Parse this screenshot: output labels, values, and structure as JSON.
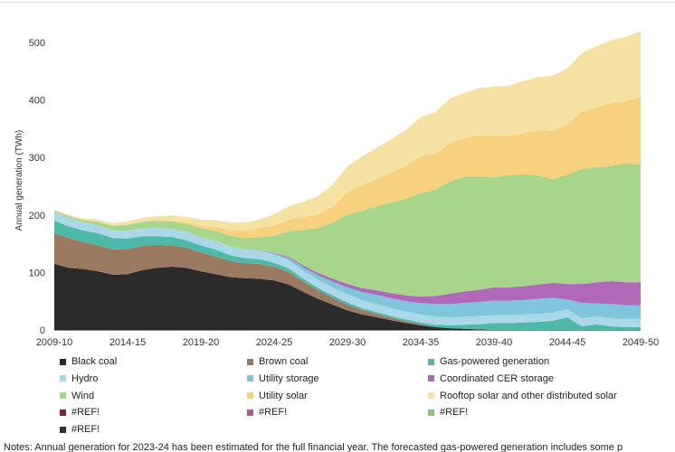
{
  "chart_data": {
    "type": "area",
    "stacked": true,
    "title": "",
    "xlabel": "",
    "ylabel": "Annual generation (TWh)",
    "ylim": [
      0,
      530
    ],
    "yticks": [
      0,
      100,
      200,
      300,
      400,
      500
    ],
    "x": [
      "2009-10",
      "2010-11",
      "2011-12",
      "2012-13",
      "2013-14",
      "2014-15",
      "2015-16",
      "2016-17",
      "2017-18",
      "2018-19",
      "2019-20",
      "2020-21",
      "2021-22",
      "2022-23",
      "2023-24",
      "2024-25",
      "2025-26",
      "2026-27",
      "2027-28",
      "2028-29",
      "2029-30",
      "2030-31",
      "2031-32",
      "2032-33",
      "2033-34",
      "2034-35",
      "2035-36",
      "2036-37",
      "2037-38",
      "2038-39",
      "2039-40",
      "2040-41",
      "2041-42",
      "2042-43",
      "2043-44",
      "2044-45",
      "2045-46",
      "2046-47",
      "2047-48",
      "2048-49",
      "2049-50"
    ],
    "xtick_labels": [
      "2009-10",
      "2014-15",
      "2019-20",
      "2024-25",
      "2029-30",
      "2034-35",
      "2039-40",
      "2044-45",
      "2049-50"
    ],
    "grid": false,
    "legend_position": "bottom",
    "series": [
      {
        "name": "Black coal",
        "color": "#2b2b2b",
        "values": [
          115,
          108,
          106,
          102,
          96,
          97,
          104,
          108,
          110,
          108,
          102,
          97,
          92,
          90,
          89,
          86,
          79,
          66,
          54,
          44,
          34,
          27,
          22,
          17,
          12,
          8,
          5,
          3,
          2,
          1,
          0,
          0,
          0,
          0,
          0,
          0,
          0,
          0,
          0,
          0,
          0
        ]
      },
      {
        "name": "Brown coal",
        "color": "#9b7a61",
        "values": [
          53,
          52,
          47,
          45,
          44,
          44,
          42,
          40,
          37,
          35,
          33,
          31,
          28,
          26,
          26,
          24,
          22,
          18,
          15,
          12,
          10,
          8,
          6,
          4,
          3,
          2,
          0,
          0,
          0,
          0,
          0,
          0,
          0,
          0,
          0,
          0,
          0,
          0,
          0,
          0,
          0
        ]
      },
      {
        "name": "Gas-powered generation",
        "color": "#4fb9a9",
        "values": [
          22,
          20,
          20,
          21,
          20,
          18,
          17,
          15,
          15,
          13,
          12,
          12,
          10,
          9,
          8,
          7,
          6,
          5,
          4,
          4,
          4,
          3,
          3,
          3,
          3,
          3,
          4,
          5,
          7,
          9,
          12,
          12,
          13,
          14,
          16,
          22,
          6,
          10,
          6,
          5,
          5
        ]
      },
      {
        "name": "Hydro",
        "color": "#aad8e8",
        "values": [
          15,
          15,
          14,
          14,
          13,
          14,
          14,
          15,
          14,
          15,
          14,
          15,
          15,
          15,
          15,
          14,
          14,
          14,
          14,
          14,
          14,
          14,
          14,
          14,
          14,
          14,
          14,
          14,
          14,
          14,
          14,
          14,
          14,
          14,
          14,
          14,
          14,
          14,
          14,
          14,
          14
        ]
      },
      {
        "name": "Utility storage",
        "color": "#7fc6dd",
        "values": [
          0,
          0,
          0,
          0,
          0,
          0,
          0,
          0,
          0,
          0,
          0,
          0,
          0,
          0,
          1,
          2,
          4,
          6,
          8,
          10,
          12,
          14,
          16,
          17,
          18,
          20,
          22,
          23,
          24,
          25,
          25,
          25,
          25,
          26,
          26,
          17,
          27,
          22,
          25,
          24,
          24
        ]
      },
      {
        "name": "Coordinated CER storage",
        "color": "#b068b8",
        "values": [
          0,
          0,
          0,
          0,
          0,
          0,
          0,
          0,
          0,
          0,
          0,
          0,
          0,
          0,
          0,
          1,
          2,
          3,
          4,
          5,
          6,
          7,
          8,
          9,
          10,
          11,
          14,
          18,
          20,
          21,
          23,
          23,
          24,
          25,
          26,
          27,
          33,
          37,
          40,
          40,
          40
        ]
      },
      {
        "name": "Wind",
        "color": "#a8d58c",
        "values": [
          3,
          3,
          4,
          6,
          8,
          10,
          11,
          12,
          13,
          14,
          16,
          17,
          19,
          20,
          22,
          30,
          45,
          62,
          78,
          98,
          120,
          134,
          146,
          158,
          168,
          180,
          185,
          195,
          200,
          197,
          192,
          195,
          195,
          190,
          180,
          190,
          200,
          200,
          200,
          207,
          205
        ]
      },
      {
        "name": "Utility solar",
        "color": "#f6d27e",
        "values": [
          0,
          0,
          0,
          0,
          0,
          0,
          0,
          0,
          1,
          2,
          4,
          7,
          10,
          13,
          16,
          18,
          20,
          22,
          24,
          28,
          40,
          45,
          48,
          52,
          58,
          65,
          62,
          68,
          66,
          72,
          72,
          68,
          72,
          78,
          84,
          88,
          100,
          104,
          110,
          108,
          117
        ]
      },
      {
        "name": "Rooftop solar and other distributed solar",
        "color": "#f5e2a3",
        "values": [
          1,
          2,
          3,
          4,
          5,
          6,
          7,
          8,
          9,
          10,
          11,
          12,
          13,
          14,
          15,
          19,
          23,
          27,
          32,
          38,
          45,
          50,
          54,
          58,
          62,
          67,
          73,
          77,
          80,
          82,
          85,
          88,
          90,
          93,
          96,
          97,
          102,
          107,
          109,
          112,
          115
        ]
      },
      {
        "name": "#REF!",
        "color": "#7a2049"
      },
      {
        "name": "#REF!",
        "color": "#b5549a"
      },
      {
        "name": "#REF!",
        "color": "#8cc56d"
      },
      {
        "name": "#REF!",
        "color": "#3a2a3a"
      }
    ]
  },
  "notes": "Notes: Annual generation for 2023-24 has been estimated for the full financial year. The forecasted gas-powered generation includes some p"
}
